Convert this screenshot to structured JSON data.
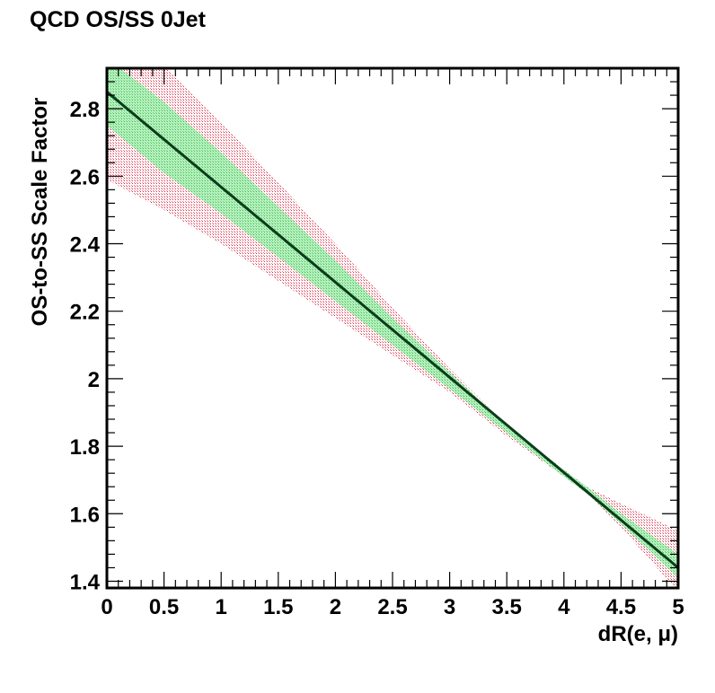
{
  "chart_data": {
    "type": "line",
    "title": "QCD OS/SS 0Jet",
    "xlabel": "dR(e,  μ)",
    "ylabel": "OS-to-SS Scale Factor",
    "xlim": [
      0,
      5
    ],
    "ylim": [
      1.38,
      2.92
    ],
    "x_ticks": [
      0,
      0.5,
      1,
      1.5,
      2,
      2.5,
      3,
      3.5,
      4,
      4.5,
      5
    ],
    "x_tick_labels": [
      "0",
      "0.5",
      "1",
      "1.5",
      "2",
      "2.5",
      "3",
      "3.5",
      "4",
      "4.5",
      "5"
    ],
    "y_ticks": [
      1.4,
      1.6,
      1.8,
      2.0,
      2.2,
      2.4,
      2.6,
      2.8
    ],
    "y_tick_labels": [
      "1.4",
      "1.6",
      "1.8",
      "2",
      "2.2",
      "2.4",
      "2.6",
      "2.8"
    ],
    "grid": false,
    "series": [
      {
        "role": "central-fit",
        "color": "#0b3d1a",
        "x": [
          0,
          5
        ],
        "y": [
          2.85,
          1.44
        ]
      }
    ],
    "bands": [
      {
        "role": "outer-band",
        "color": "#d9304a",
        "x": [
          0,
          0.5,
          1,
          1.5,
          2,
          2.5,
          3,
          3.5,
          4,
          4.2,
          4.5,
          5
        ],
        "lower": [
          2.59,
          2.5,
          2.4,
          2.29,
          2.18,
          2.07,
          1.96,
          1.83,
          1.71,
          1.66,
          1.56,
          1.37
        ],
        "upper": [
          3.1,
          2.93,
          2.76,
          2.58,
          2.4,
          2.21,
          2.03,
          1.86,
          1.73,
          1.68,
          1.63,
          1.55
        ]
      },
      {
        "role": "inner-band",
        "color": "#7ee08a",
        "x": [
          0,
          0.5,
          1,
          1.5,
          2,
          2.5,
          3,
          3.5,
          4,
          4.2,
          4.5,
          5
        ],
        "lower": [
          2.75,
          2.61,
          2.49,
          2.36,
          2.23,
          2.1,
          1.97,
          1.84,
          1.71,
          1.66,
          1.57,
          1.41
        ],
        "upper": [
          2.95,
          2.82,
          2.67,
          2.51,
          2.35,
          2.18,
          2.02,
          1.86,
          1.73,
          1.68,
          1.6,
          1.48
        ]
      }
    ]
  }
}
